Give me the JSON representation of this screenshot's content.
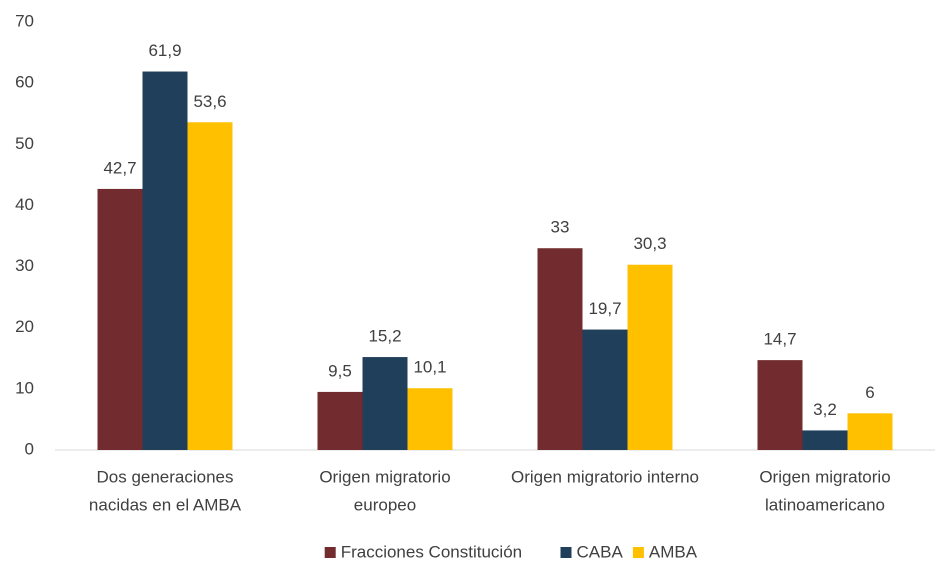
{
  "chart_data": {
    "type": "bar",
    "categories": [
      [
        "Dos generaciones",
        "nacidas en el AMBA"
      ],
      [
        "Origen migratorio",
        "europeo"
      ],
      [
        "Origen migratorio interno"
      ],
      [
        "Origen migratorio",
        "latinoamericano"
      ]
    ],
    "series": [
      {
        "name": "Fracciones Constitución",
        "color": "#722b2e",
        "values": [
          42.7,
          9.5,
          33,
          14.7
        ],
        "value_labels": [
          "42,7",
          "9,5",
          "33",
          "14,7"
        ]
      },
      {
        "name": "CABA",
        "color": "#1f3f5a",
        "values": [
          61.9,
          15.2,
          19.7,
          3.2
        ],
        "value_labels": [
          "61,9",
          "15,2",
          "19,7",
          "3,2"
        ]
      },
      {
        "name": "AMBA",
        "color": "#ffc000",
        "values": [
          53.6,
          10.1,
          30.3,
          6
        ],
        "value_labels": [
          "53,6",
          "10,1",
          "30,3",
          "6"
        ]
      }
    ],
    "ylim": [
      0,
      70
    ],
    "yticks": [
      0,
      10,
      20,
      30,
      40,
      50,
      60,
      70
    ],
    "grid": false,
    "legend": "bottom"
  }
}
